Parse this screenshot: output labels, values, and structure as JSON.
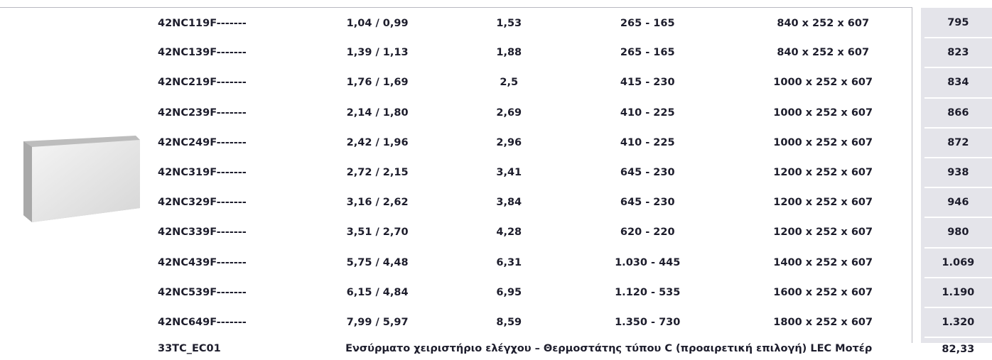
{
  "table": {
    "rows": [
      [
        "42NC119F-------",
        "1,04 / 0,99",
        "1,53",
        "265 - 165",
        "840 x 252 x 607",
        "795"
      ],
      [
        "42NC139F-------",
        "1,39 / 1,13",
        "1,88",
        "265 - 165",
        "840 x 252 x 607",
        "823"
      ],
      [
        "42NC219F-------",
        "1,76 / 1,69",
        "2,5",
        "415 - 230",
        "1000 x 252 x 607",
        "834"
      ],
      [
        "42NC239F-------",
        "2,14 / 1,80",
        "2,69",
        "410 - 225",
        "1000 x 252 x 607",
        "866"
      ],
      [
        "42NC249F-------",
        "2,42 / 1,96",
        "2,96",
        "410 - 225",
        "1000 x 252 x 607",
        "872"
      ],
      [
        "42NC319F-------",
        "2,72 / 2,15",
        "3,41",
        "645 - 230",
        "1200 x 252 x 607",
        "938"
      ],
      [
        "42NC329F-------",
        "3,16 / 2,62",
        "3,84",
        "645 - 230",
        "1200 x 252 x 607",
        "946"
      ],
      [
        "42NC339F-------",
        "3,51 / 2,70",
        "4,28",
        "620 - 220",
        "1200 x 252 x 607",
        "980"
      ],
      [
        "42NC439F-------",
        "5,75 / 4,48",
        "6,31",
        "1.030 - 445",
        "1400 x 252 x 607",
        "1.069"
      ],
      [
        "42NC539F-------",
        "6,15 / 4,84",
        "6,95",
        "1.120 - 535",
        "1600 x 252 x 607",
        "1.190"
      ],
      [
        "42NC649F-------",
        "7,99 / 5,97",
        "8,59",
        "1.350 - 730",
        "1800 x 252 x 607",
        "1.320"
      ]
    ],
    "accessory": {
      "model": "33TC_EC01",
      "description": "Ενσύρματο χειριστήριο ελέγχου – Θερμοστάτης τύπου C (προαιρετική επιλογή) LEC Μοτέρ",
      "price": "82,33"
    }
  }
}
